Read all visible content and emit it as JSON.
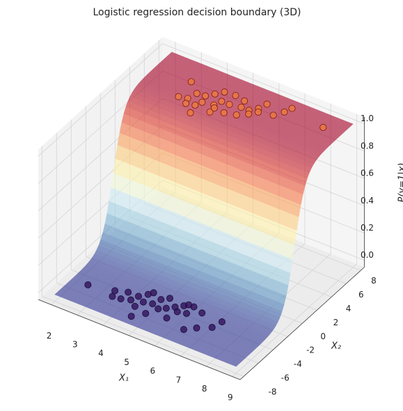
{
  "chart_data": {
    "type": "scatter3d",
    "title": "Logistic regression decision boundary (3D)",
    "x_label": "X₁",
    "y_label": "X₂",
    "z_label": "P(y=1|x)",
    "xlim": [
      1.5,
      9.3
    ],
    "ylim": [
      -8.5,
      8.5
    ],
    "zlim": [
      -0.05,
      1.05
    ],
    "xticks": [
      2,
      3,
      4,
      5,
      6,
      7,
      8,
      9
    ],
    "yticks": [
      -8,
      -6,
      -4,
      -2,
      0,
      2,
      4,
      6,
      8
    ],
    "zticks": [
      {
        "value": 0,
        "label": "0.0"
      },
      {
        "value": 0.2,
        "label": "0.2"
      },
      {
        "value": 0.4,
        "label": "0.4"
      },
      {
        "value": 0.6,
        "label": "0.6"
      },
      {
        "value": 0.8,
        "label": "0.8"
      },
      {
        "value": 1,
        "label": "1.0"
      }
    ],
    "grid": true,
    "surface": {
      "weights": [
        0,
        1.3
      ],
      "intercept": 0,
      "x_range": [
        2,
        9
      ],
      "y_range": [
        -8,
        8
      ],
      "colors": [
        "#313695",
        "#4575b4",
        "#74add1",
        "#abd9e9",
        "#e0f3f8",
        "#ffffbf",
        "#fee090",
        "#fdae61",
        "#f46d43",
        "#d73027",
        "#a50026"
      ],
      "alpha": 0.6
    },
    "series": [
      {
        "color": "#2d0b5a",
        "edgecolor": "#1b1030",
        "alpha": 0.75,
        "x": [
          2.6,
          3.5,
          3.9,
          3.6,
          3.9,
          4.2,
          4.3,
          4.5,
          4.6,
          4.9,
          5.0,
          5.2,
          5.2,
          5.4,
          5.6,
          5.8,
          5.9,
          6.1,
          5.8,
          6.1,
          6.5,
          5.7,
          5.0,
          4.7,
          6.5,
          6.8,
          7.2,
          7.3,
          4.6,
          4.5
        ],
        "y": [
          -5.6,
          -5.1,
          -4.7,
          -5.8,
          -5.7,
          -5.4,
          -4.7,
          -4.1,
          -5.1,
          -4.9,
          -4.1,
          -3.6,
          -5.2,
          -4.8,
          -4.3,
          -3.8,
          -3.5,
          -3.5,
          -4.7,
          -4.5,
          -3.8,
          -5.8,
          -6.2,
          -7.1,
          -6.3,
          -5.6,
          -4.9,
          -3.9,
          -3.7,
          -5.9
        ],
        "z": [
          0,
          0,
          0,
          0,
          0,
          0,
          0,
          0,
          0,
          0,
          0,
          0,
          0,
          0,
          0,
          0,
          0,
          0,
          0,
          0,
          0,
          0,
          0,
          0,
          0,
          0,
          0,
          0,
          0,
          0
        ]
      },
      {
        "color": "#ee7a3e",
        "edgecolor": "#7a1c0c",
        "alpha": 0.8,
        "x": [
          3.4,
          3.5,
          3.8,
          3.9,
          4.2,
          4.4,
          4.6,
          5.0,
          5.4,
          3.9,
          4.2,
          4.3,
          4.7,
          4.8,
          5.1,
          5.5,
          5.8,
          6.0,
          6.1,
          4.3,
          4.8,
          5.2,
          5.6,
          5.9,
          6.1,
          6.6,
          6.8,
          6.9,
          8.3,
          4.8
        ],
        "y": [
          5.7,
          3.6,
          3.8,
          4.7,
          4.8,
          5.4,
          6.0,
          6.1,
          5.9,
          3.2,
          3.4,
          4.0,
          4.2,
          4.9,
          4.9,
          5.1,
          5.1,
          5.7,
          6.5,
          2.4,
          3.3,
          3.8,
          4.1,
          4.7,
          5.3,
          5.6,
          6.4,
          7.1,
          6.4,
          3.9
        ],
        "z": [
          1,
          1,
          1,
          1,
          1,
          1,
          1,
          1,
          1,
          1,
          1,
          1,
          1,
          1,
          1,
          1,
          1,
          1,
          1,
          1,
          1,
          1,
          1,
          1,
          1,
          1,
          1,
          1,
          1,
          1
        ]
      }
    ]
  }
}
